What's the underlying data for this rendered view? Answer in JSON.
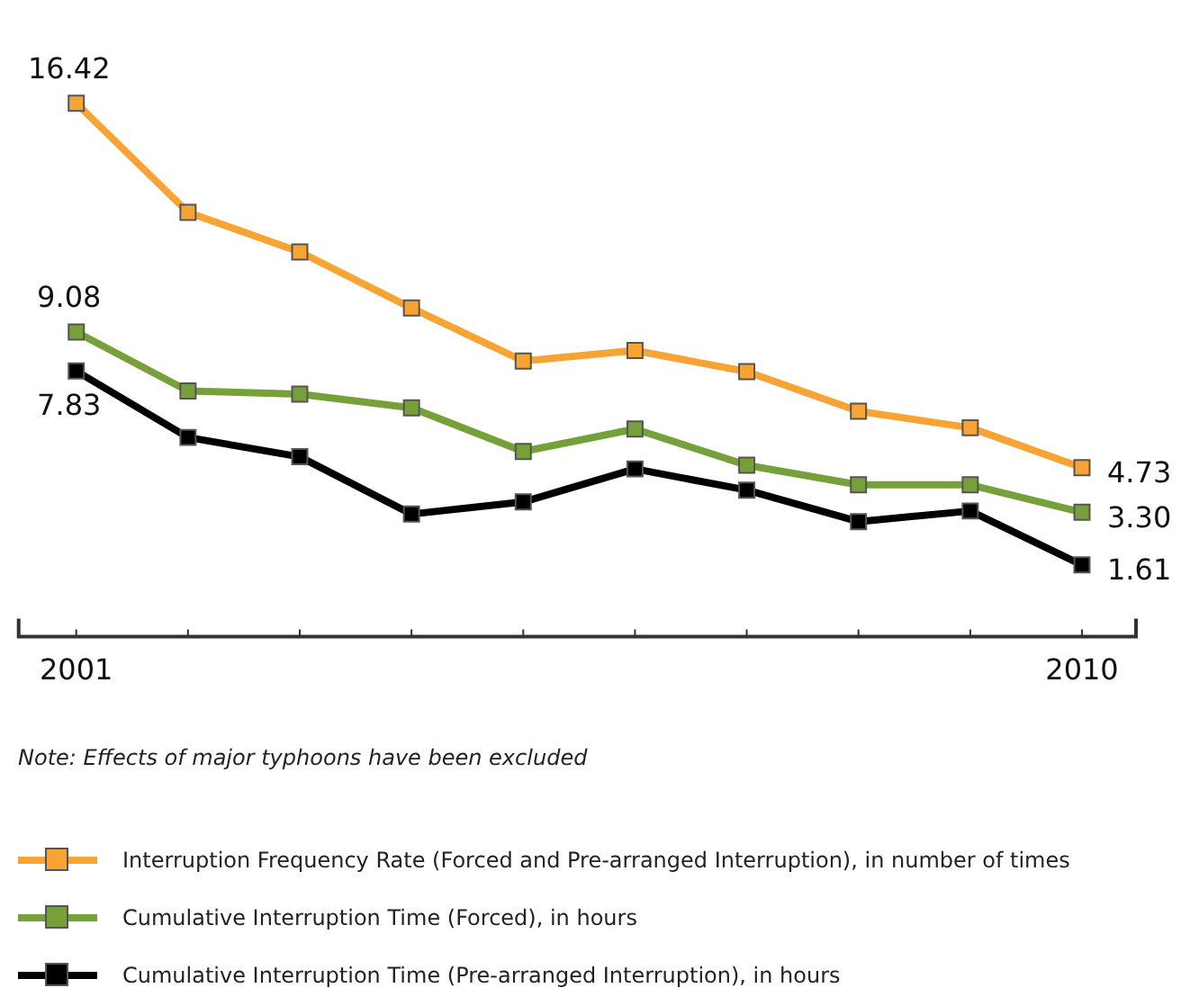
{
  "chart_data": {
    "type": "line",
    "categories": [
      "2001",
      null,
      null,
      null,
      null,
      null,
      null,
      null,
      null,
      "2010"
    ],
    "series": [
      {
        "name": "Interruption Frequency Rate (Forced and Pre-arranged Interruption), in number of times",
        "color": "#f7a435",
        "values": [
          16.42,
          12.92,
          11.65,
          9.85,
          8.15,
          8.49,
          7.81,
          6.54,
          6.01,
          4.73
        ],
        "value_labels": [
          "16.42",
          null,
          null,
          null,
          null,
          null,
          null,
          null,
          null,
          "4.73"
        ]
      },
      {
        "name": "Cumulative Interruption Time (Forced), in hours",
        "color": "#76a13a",
        "values": [
          9.08,
          7.19,
          7.09,
          6.65,
          5.25,
          5.97,
          4.81,
          4.18,
          4.18,
          3.3
        ],
        "value_labels": [
          "9.08",
          null,
          null,
          null,
          null,
          null,
          null,
          null,
          null,
          "3.30"
        ]
      },
      {
        "name": "Cumulative Interruption Time (Pre-arranged Interruption), in hours",
        "color": "#000000",
        "values": [
          7.83,
          5.7,
          5.08,
          3.24,
          3.63,
          4.69,
          4.01,
          3.0,
          3.34,
          1.61
        ],
        "value_labels": [
          "7.83",
          null,
          null,
          null,
          null,
          null,
          null,
          null,
          null,
          "1.61"
        ]
      }
    ],
    "annotations": [
      "Note: Effects of major typhoons have been excluded"
    ],
    "marker": "square",
    "line_style": "solid",
    "legend": "bottom",
    "grid": false,
    "tick_labels": "x"
  }
}
